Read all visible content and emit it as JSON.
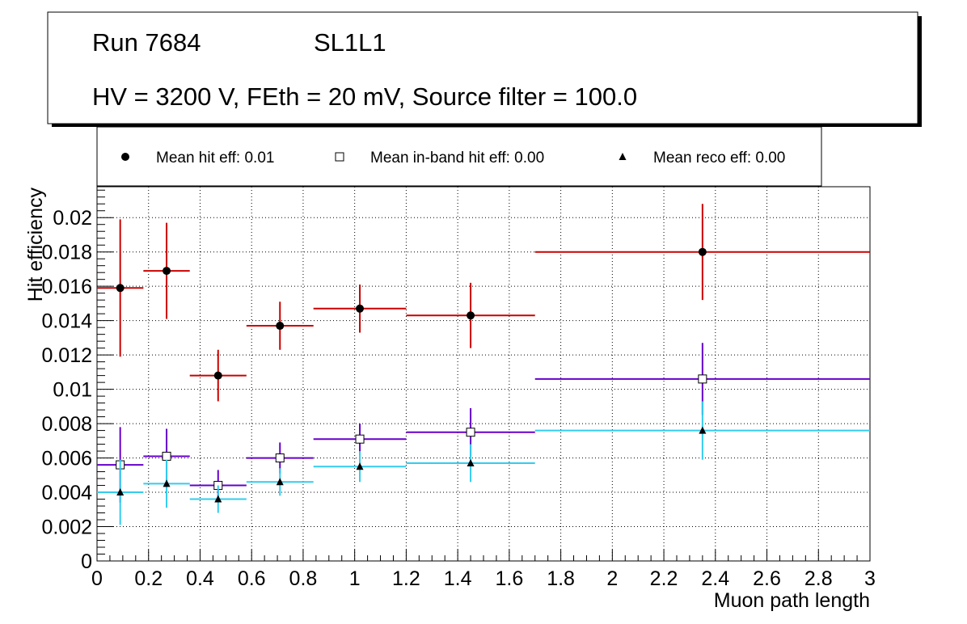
{
  "header": {
    "run_label": "Run 7684",
    "layer_label": "SL1L1",
    "conditions": "HV = 3200 V, FEth = 20 mV, Source filter = 100.0"
  },
  "colors": {
    "hit": "#cc0000",
    "inband": "#6600cc",
    "reco": "#33ccee",
    "frame": "#000000",
    "grid": "#000000"
  },
  "chart_data": {
    "type": "scatter",
    "xlabel": "Muon path length",
    "ylabel": "Hit efficiency",
    "xlim": [
      0,
      3
    ],
    "ylim": [
      0,
      0.0218
    ],
    "xticks": [
      0,
      0.2,
      0.4,
      0.6,
      0.8,
      1,
      1.2,
      1.4,
      1.6,
      1.8,
      2,
      2.2,
      2.4,
      2.6,
      2.8,
      3
    ],
    "xtick_labels": [
      "0",
      "0.2",
      "0.4",
      "0.6",
      "0.8",
      "1",
      "1.2",
      "1.4",
      "1.6",
      "1.8",
      "2",
      "2.2",
      "2.4",
      "2.6",
      "2.8",
      "3"
    ],
    "yticks": [
      0,
      0.002,
      0.004,
      0.006,
      0.008,
      0.01,
      0.012,
      0.014,
      0.016,
      0.018,
      0.02
    ],
    "ytick_labels": [
      "0",
      "0.002",
      "0.004",
      "0.006",
      "0.008",
      "0.01",
      "0.012",
      "0.014",
      "0.016",
      "0.018",
      "0.02"
    ],
    "grid": true,
    "legend_position": "top",
    "series": [
      {
        "name": "Mean hit  eff: 0.01",
        "key": "hit",
        "marker": "filled-circle",
        "color": "#cc0000",
        "points": [
          {
            "x": 0.09,
            "y": 0.0159,
            "xlo": 0.0,
            "xhi": 0.18,
            "yerr": 0.004
          },
          {
            "x": 0.27,
            "y": 0.0169,
            "xlo": 0.18,
            "xhi": 0.36,
            "yerr": 0.0028
          },
          {
            "x": 0.47,
            "y": 0.0108,
            "xlo": 0.36,
            "xhi": 0.58,
            "yerr": 0.0015
          },
          {
            "x": 0.71,
            "y": 0.0137,
            "xlo": 0.58,
            "xhi": 0.84,
            "yerr": 0.0014
          },
          {
            "x": 1.02,
            "y": 0.0147,
            "xlo": 0.84,
            "xhi": 1.2,
            "yerr": 0.0014
          },
          {
            "x": 1.45,
            "y": 0.0143,
            "xlo": 1.2,
            "xhi": 1.7,
            "yerr": 0.0019
          },
          {
            "x": 2.35,
            "y": 0.018,
            "xlo": 1.7,
            "xhi": 3.0,
            "yerr": 0.0028
          }
        ]
      },
      {
        "name": "Mean in-band hit eff: 0.00",
        "key": "inband",
        "marker": "open-square",
        "color": "#6600cc",
        "points": [
          {
            "x": 0.09,
            "y": 0.0056,
            "xlo": 0.0,
            "xhi": 0.18,
            "yerr": 0.0022
          },
          {
            "x": 0.27,
            "y": 0.0061,
            "xlo": 0.18,
            "xhi": 0.36,
            "yerr": 0.0016
          },
          {
            "x": 0.47,
            "y": 0.0044,
            "xlo": 0.36,
            "xhi": 0.58,
            "yerr": 0.0009
          },
          {
            "x": 0.71,
            "y": 0.006,
            "xlo": 0.58,
            "xhi": 0.84,
            "yerr": 0.0009
          },
          {
            "x": 1.02,
            "y": 0.0071,
            "xlo": 0.84,
            "xhi": 1.2,
            "yerr": 0.0009
          },
          {
            "x": 1.45,
            "y": 0.0075,
            "xlo": 1.2,
            "xhi": 1.7,
            "yerr": 0.0014
          },
          {
            "x": 2.35,
            "y": 0.0106,
            "xlo": 1.7,
            "xhi": 3.0,
            "yerr": 0.0021
          }
        ]
      },
      {
        "name": "Mean reco eff: 0.00",
        "key": "reco",
        "marker": "filled-triangle",
        "color": "#33ccee",
        "points": [
          {
            "x": 0.09,
            "y": 0.004,
            "xlo": 0.0,
            "xhi": 0.18,
            "yerr": 0.0019
          },
          {
            "x": 0.27,
            "y": 0.0045,
            "xlo": 0.18,
            "xhi": 0.36,
            "yerr": 0.0014
          },
          {
            "x": 0.47,
            "y": 0.0036,
            "xlo": 0.36,
            "xhi": 0.58,
            "yerr": 0.0008
          },
          {
            "x": 0.71,
            "y": 0.0046,
            "xlo": 0.58,
            "xhi": 0.84,
            "yerr": 0.0008
          },
          {
            "x": 1.02,
            "y": 0.0055,
            "xlo": 0.84,
            "xhi": 1.2,
            "yerr": 0.0009
          },
          {
            "x": 1.45,
            "y": 0.0057,
            "xlo": 1.2,
            "xhi": 1.7,
            "yerr": 0.0011
          },
          {
            "x": 2.35,
            "y": 0.0076,
            "xlo": 1.7,
            "xhi": 3.0,
            "yerr": 0.0017
          }
        ]
      }
    ]
  }
}
